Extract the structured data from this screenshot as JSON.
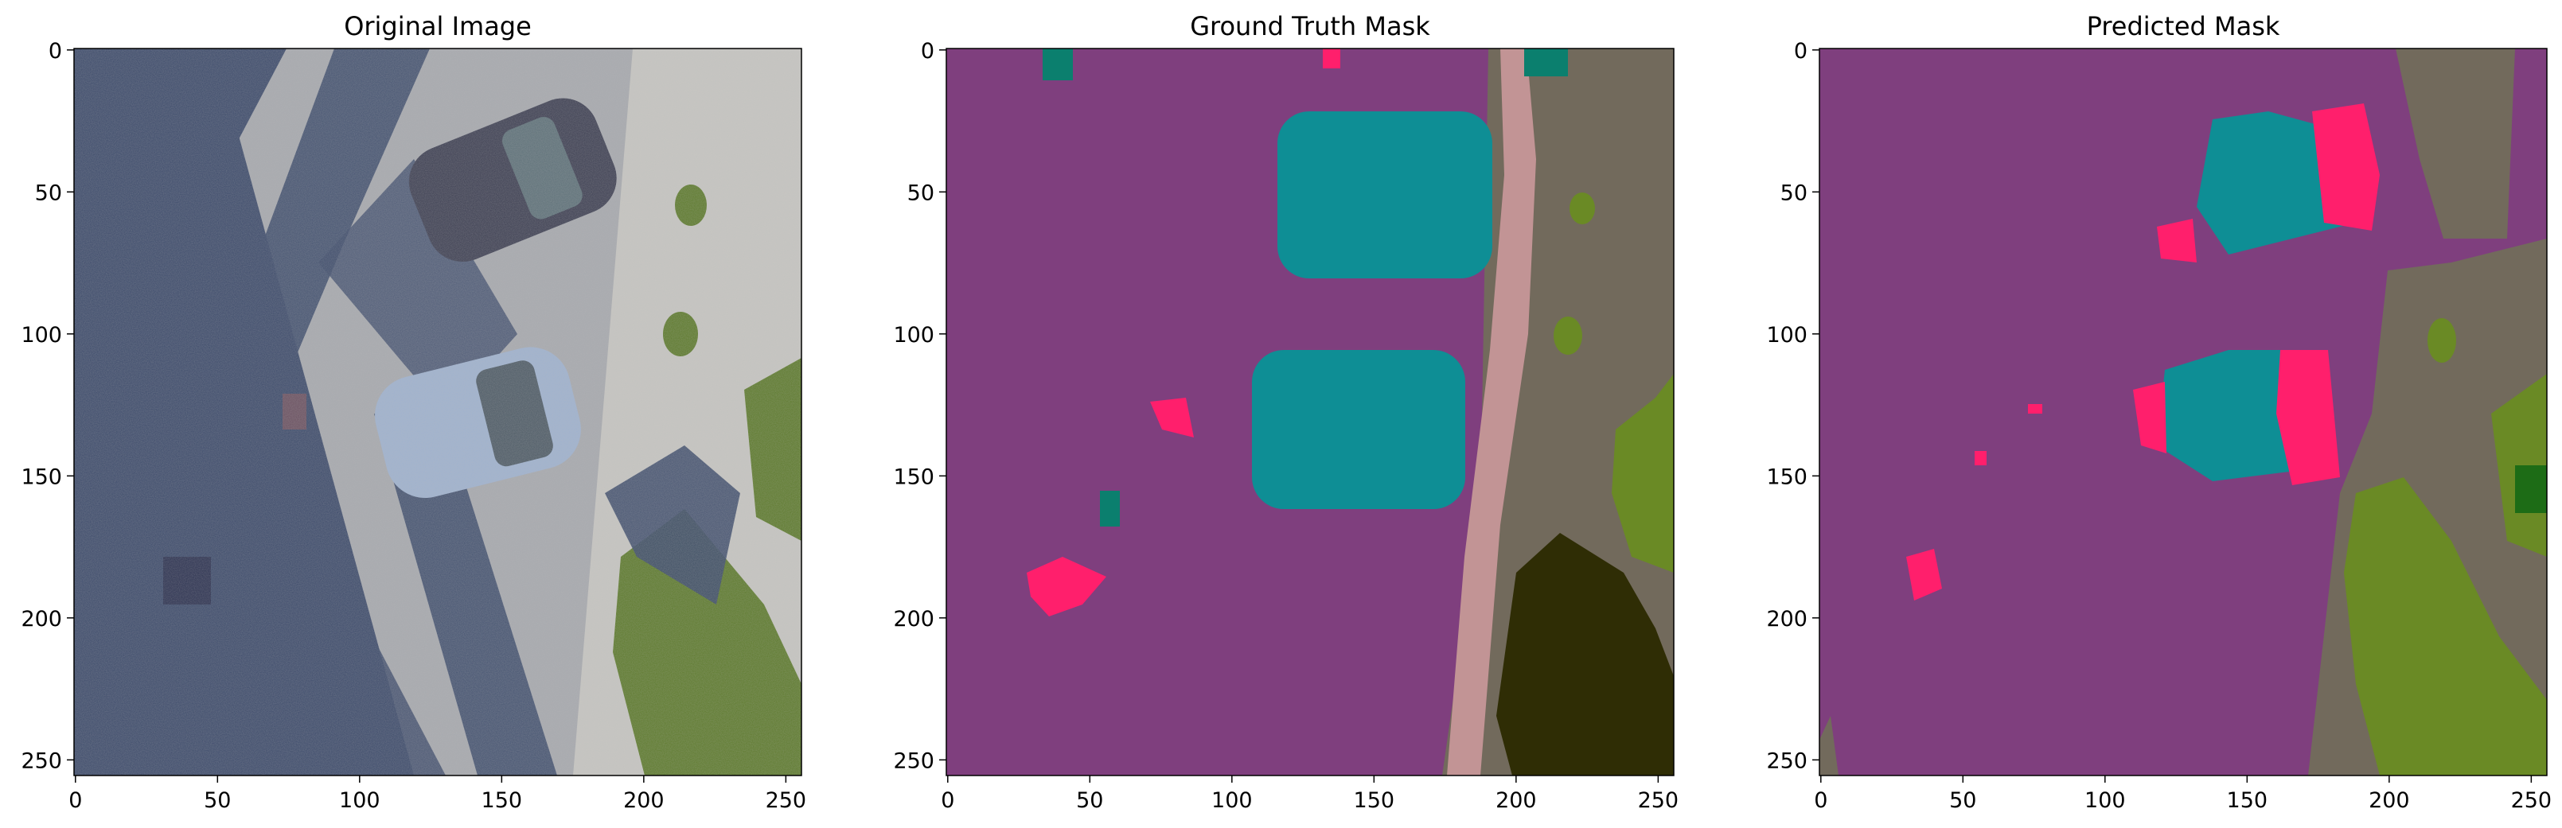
{
  "figure": {
    "panels": [
      {
        "id": "original",
        "title": "Original Image"
      },
      {
        "id": "ground_truth",
        "title": "Ground Truth Mask"
      },
      {
        "id": "predicted",
        "title": "Predicted Mask"
      }
    ]
  },
  "palette": {
    "background": "#7f3f7e",
    "car": "#0e8e95",
    "person": "#ff1f6c",
    "dirt": "#726a5c",
    "gravel_path": "#c29495",
    "vegetation": "#6a8a25",
    "tree": "#2f2d05",
    "small_object": "#0b7f6e",
    "bush_dark": "#1d6c16",
    "photo_pavement": "#a7a9ae",
    "photo_shadow": "#3c4a6a",
    "photo_gravel": "#c7c6c2",
    "photo_green": "#5d7a2c",
    "photo_car_dark": "#3d3f52",
    "photo_car_light": "#9fb2cf"
  },
  "chart_data": [
    {
      "type": "heatmap",
      "title": "Original Image",
      "xlim": [
        0,
        255
      ],
      "ylim": [
        255,
        0
      ],
      "xticks": [
        0,
        50,
        100,
        150,
        200,
        250
      ],
      "yticks": [
        0,
        50,
        100,
        150,
        200,
        250
      ]
    },
    {
      "type": "heatmap",
      "title": "Ground Truth Mask",
      "xlim": [
        0,
        255
      ],
      "ylim": [
        255,
        0
      ],
      "xticks": [
        0,
        50,
        100,
        150,
        200,
        250
      ],
      "yticks": [
        0,
        50,
        100,
        150,
        200,
        250
      ]
    },
    {
      "type": "heatmap",
      "title": "Predicted Mask",
      "xlim": [
        0,
        255
      ],
      "ylim": [
        255,
        0
      ],
      "xticks": [
        0,
        50,
        100,
        150,
        200,
        250
      ],
      "yticks": [
        0,
        50,
        100,
        150,
        200,
        250
      ]
    }
  ]
}
